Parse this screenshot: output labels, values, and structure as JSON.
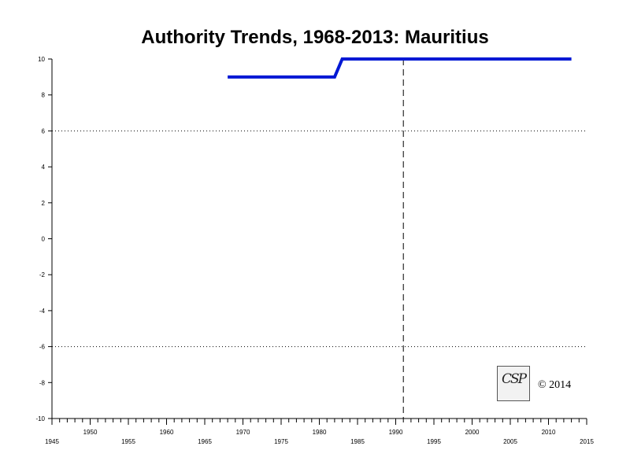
{
  "chart_data": {
    "type": "line",
    "title": "Authority Trends, 1968-2013: Mauritius",
    "xlabel": "",
    "ylabel": "",
    "xlim": [
      1945,
      2015
    ],
    "ylim": [
      -10,
      10
    ],
    "y_ticks": [
      10,
      8,
      6,
      4,
      2,
      0,
      -2,
      -4,
      -6,
      -8,
      -10
    ],
    "x_ticks_upper": [
      1950,
      1960,
      1970,
      1980,
      1990,
      2000,
      2010
    ],
    "x_ticks_lower": [
      1945,
      1955,
      1965,
      1975,
      1985,
      1995,
      2005,
      2015
    ],
    "reference_lines_y": [
      6,
      -6
    ],
    "marker_line_x": 1991,
    "series": [
      {
        "color": "#0018d4",
        "points": [
          [
            1968,
            9
          ],
          [
            1982,
            9
          ],
          [
            1983,
            10
          ],
          [
            2013,
            10
          ]
        ]
      }
    ],
    "grid": false
  },
  "logo": {
    "text": "CSP"
  },
  "copyright": "© 2014",
  "colors": {
    "series": "#0018d4",
    "axis": "#000000"
  }
}
